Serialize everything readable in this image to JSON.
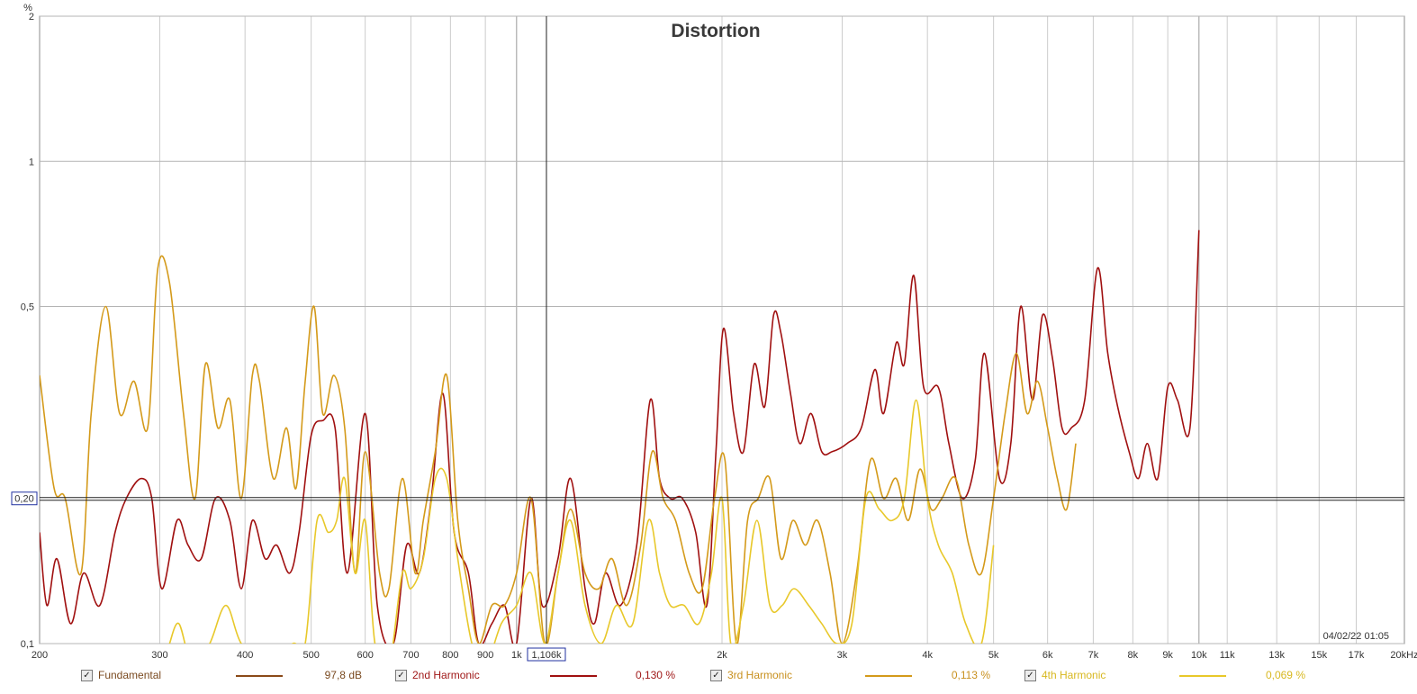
{
  "chart_data": {
    "type": "line",
    "title": "Distortion",
    "ylabel": "%",
    "xunit": "kHz",
    "x_scale": "log",
    "y_scale": "log",
    "xlim": [
      200,
      20000
    ],
    "ylim": [
      0.1,
      2
    ],
    "x_ticks": [
      {
        "v": 200,
        "t": "200"
      },
      {
        "v": 300,
        "t": "300"
      },
      {
        "v": 400,
        "t": "400"
      },
      {
        "v": 500,
        "t": "500"
      },
      {
        "v": 600,
        "t": "600"
      },
      {
        "v": 700,
        "t": "700"
      },
      {
        "v": 800,
        "t": "800"
      },
      {
        "v": 900,
        "t": "900"
      },
      {
        "v": 1000,
        "t": "1k"
      },
      {
        "v": 2000,
        "t": "2k"
      },
      {
        "v": 3000,
        "t": "3k"
      },
      {
        "v": 4000,
        "t": "4k"
      },
      {
        "v": 5000,
        "t": "5k"
      },
      {
        "v": 6000,
        "t": "6k"
      },
      {
        "v": 7000,
        "t": "7k"
      },
      {
        "v": 8000,
        "t": "8k"
      },
      {
        "v": 9000,
        "t": "9k"
      },
      {
        "v": 10000,
        "t": "10k"
      },
      {
        "v": 11000,
        "t": "11k"
      },
      {
        "v": 13000,
        "t": "13k"
      },
      {
        "v": 15000,
        "t": "15k"
      },
      {
        "v": 17000,
        "t": "17k"
      },
      {
        "v": 20000,
        "t": "20kHz"
      }
    ],
    "y_ticks": [
      {
        "v": 2,
        "t": "2"
      },
      {
        "v": 1,
        "t": "1"
      },
      {
        "v": 0.5,
        "t": "0,5"
      },
      {
        "v": 0.1,
        "t": "0,1"
      }
    ],
    "y_gridlines": [
      2,
      1,
      0.5,
      0.1
    ],
    "cursor_x": {
      "value": 1106,
      "label": "1,106k"
    },
    "cursor_y": {
      "value": 0.2,
      "label": "0,20"
    },
    "timestamp": "04/02/22 01:05",
    "grid": true,
    "series": [
      {
        "name": "2nd Harmonic",
        "color": "#a01010",
        "points": [
          [
            200,
            0.17
          ],
          [
            205,
            0.12
          ],
          [
            212,
            0.15
          ],
          [
            222,
            0.11
          ],
          [
            232,
            0.14
          ],
          [
            245,
            0.12
          ],
          [
            258,
            0.17
          ],
          [
            268,
            0.2
          ],
          [
            282,
            0.22
          ],
          [
            292,
            0.2
          ],
          [
            302,
            0.13
          ],
          [
            318,
            0.18
          ],
          [
            330,
            0.16
          ],
          [
            345,
            0.15
          ],
          [
            362,
            0.2
          ],
          [
            380,
            0.18
          ],
          [
            395,
            0.13
          ],
          [
            410,
            0.18
          ],
          [
            428,
            0.15
          ],
          [
            445,
            0.16
          ],
          [
            465,
            0.14
          ],
          [
            480,
            0.17
          ],
          [
            500,
            0.27
          ],
          [
            520,
            0.29
          ],
          [
            542,
            0.28
          ],
          [
            565,
            0.14
          ],
          [
            600,
            0.3
          ],
          [
            625,
            0.12
          ],
          [
            660,
            0.1
          ],
          [
            690,
            0.16
          ],
          [
            720,
            0.14
          ],
          [
            750,
            0.2
          ],
          [
            780,
            0.33
          ],
          [
            810,
            0.17
          ],
          [
            850,
            0.14
          ],
          [
            880,
            0.1
          ],
          [
            920,
            0.11
          ],
          [
            960,
            0.12
          ],
          [
            1000,
            0.1
          ],
          [
            1050,
            0.2
          ],
          [
            1090,
            0.12
          ],
          [
            1150,
            0.15
          ],
          [
            1200,
            0.22
          ],
          [
            1260,
            0.13
          ],
          [
            1300,
            0.11
          ],
          [
            1350,
            0.14
          ],
          [
            1420,
            0.12
          ],
          [
            1500,
            0.16
          ],
          [
            1570,
            0.32
          ],
          [
            1620,
            0.22
          ],
          [
            1680,
            0.2
          ],
          [
            1750,
            0.2
          ],
          [
            1830,
            0.17
          ],
          [
            1900,
            0.12
          ],
          [
            1960,
            0.25
          ],
          [
            2010,
            0.45
          ],
          [
            2080,
            0.3
          ],
          [
            2150,
            0.25
          ],
          [
            2230,
            0.38
          ],
          [
            2310,
            0.31
          ],
          [
            2380,
            0.48
          ],
          [
            2440,
            0.44
          ],
          [
            2520,
            0.33
          ],
          [
            2600,
            0.26
          ],
          [
            2700,
            0.3
          ],
          [
            2800,
            0.25
          ],
          [
            2900,
            0.25
          ],
          [
            3050,
            0.26
          ],
          [
            3200,
            0.28
          ],
          [
            3350,
            0.37
          ],
          [
            3450,
            0.3
          ],
          [
            3600,
            0.42
          ],
          [
            3700,
            0.38
          ],
          [
            3820,
            0.58
          ],
          [
            3950,
            0.34
          ],
          [
            4150,
            0.34
          ],
          [
            4300,
            0.26
          ],
          [
            4500,
            0.2
          ],
          [
            4700,
            0.24
          ],
          [
            4850,
            0.4
          ],
          [
            5100,
            0.22
          ],
          [
            5300,
            0.26
          ],
          [
            5480,
            0.5
          ],
          [
            5700,
            0.32
          ],
          [
            5900,
            0.48
          ],
          [
            6100,
            0.39
          ],
          [
            6300,
            0.28
          ],
          [
            6500,
            0.28
          ],
          [
            6800,
            0.32
          ],
          [
            7100,
            0.6
          ],
          [
            7350,
            0.4
          ],
          [
            7600,
            0.31
          ],
          [
            7900,
            0.25
          ],
          [
            8150,
            0.22
          ],
          [
            8400,
            0.26
          ],
          [
            8700,
            0.22
          ],
          [
            9000,
            0.34
          ],
          [
            9300,
            0.32
          ],
          [
            9700,
            0.28
          ],
          [
            10000,
            0.72
          ]
        ]
      },
      {
        "name": "3rd Harmonic",
        "color": "#d49a1a",
        "points": [
          [
            200,
            0.36
          ],
          [
            210,
            0.21
          ],
          [
            218,
            0.2
          ],
          [
            230,
            0.14
          ],
          [
            238,
            0.3
          ],
          [
            250,
            0.5
          ],
          [
            262,
            0.3
          ],
          [
            275,
            0.35
          ],
          [
            288,
            0.28
          ],
          [
            298,
            0.6
          ],
          [
            310,
            0.56
          ],
          [
            325,
            0.3
          ],
          [
            338,
            0.2
          ],
          [
            350,
            0.38
          ],
          [
            365,
            0.28
          ],
          [
            380,
            0.32
          ],
          [
            395,
            0.2
          ],
          [
            410,
            0.36
          ],
          [
            420,
            0.35
          ],
          [
            440,
            0.22
          ],
          [
            460,
            0.28
          ],
          [
            475,
            0.21
          ],
          [
            490,
            0.35
          ],
          [
            505,
            0.5
          ],
          [
            520,
            0.3
          ],
          [
            540,
            0.36
          ],
          [
            560,
            0.28
          ],
          [
            580,
            0.14
          ],
          [
            600,
            0.25
          ],
          [
            630,
            0.14
          ],
          [
            650,
            0.13
          ],
          [
            680,
            0.22
          ],
          [
            710,
            0.14
          ],
          [
            730,
            0.18
          ],
          [
            760,
            0.25
          ],
          [
            790,
            0.36
          ],
          [
            820,
            0.18
          ],
          [
            850,
            0.13
          ],
          [
            880,
            0.1
          ],
          [
            920,
            0.12
          ],
          [
            960,
            0.12
          ],
          [
            1000,
            0.14
          ],
          [
            1050,
            0.2
          ],
          [
            1100,
            0.1
          ],
          [
            1150,
            0.14
          ],
          [
            1200,
            0.19
          ],
          [
            1260,
            0.14
          ],
          [
            1320,
            0.13
          ],
          [
            1380,
            0.15
          ],
          [
            1450,
            0.12
          ],
          [
            1520,
            0.16
          ],
          [
            1580,
            0.25
          ],
          [
            1640,
            0.2
          ],
          [
            1710,
            0.18
          ],
          [
            1790,
            0.14
          ],
          [
            1870,
            0.13
          ],
          [
            1950,
            0.2
          ],
          [
            2020,
            0.24
          ],
          [
            2100,
            0.1
          ],
          [
            2180,
            0.18
          ],
          [
            2260,
            0.2
          ],
          [
            2350,
            0.22
          ],
          [
            2440,
            0.15
          ],
          [
            2540,
            0.18
          ],
          [
            2650,
            0.16
          ],
          [
            2760,
            0.18
          ],
          [
            2880,
            0.14
          ],
          [
            3000,
            0.1
          ],
          [
            3150,
            0.14
          ],
          [
            3300,
            0.24
          ],
          [
            3450,
            0.2
          ],
          [
            3600,
            0.22
          ],
          [
            3750,
            0.18
          ],
          [
            3900,
            0.23
          ],
          [
            4050,
            0.19
          ],
          [
            4200,
            0.2
          ],
          [
            4400,
            0.22
          ],
          [
            4600,
            0.16
          ],
          [
            4800,
            0.14
          ],
          [
            5000,
            0.2
          ],
          [
            5200,
            0.3
          ],
          [
            5400,
            0.4
          ],
          [
            5600,
            0.3
          ],
          [
            5800,
            0.35
          ],
          [
            6000,
            0.28
          ],
          [
            6200,
            0.22
          ],
          [
            6400,
            0.19
          ],
          [
            6600,
            0.26
          ]
        ]
      },
      {
        "name": "4th Harmonic",
        "color": "#e8c82a",
        "points": [
          [
            310,
            0.1
          ],
          [
            320,
            0.11
          ],
          [
            335,
            0.09
          ],
          [
            355,
            0.1
          ],
          [
            375,
            0.12
          ],
          [
            395,
            0.1
          ],
          [
            430,
            0.09
          ],
          [
            470,
            0.1
          ],
          [
            490,
            0.1
          ],
          [
            510,
            0.18
          ],
          [
            530,
            0.17
          ],
          [
            545,
            0.18
          ],
          [
            560,
            0.22
          ],
          [
            580,
            0.14
          ],
          [
            600,
            0.18
          ],
          [
            620,
            0.1
          ],
          [
            650,
            0.09
          ],
          [
            680,
            0.14
          ],
          [
            700,
            0.13
          ],
          [
            730,
            0.15
          ],
          [
            760,
            0.22
          ],
          [
            790,
            0.22
          ],
          [
            820,
            0.15
          ],
          [
            860,
            0.1
          ],
          [
            900,
            0.09
          ],
          [
            950,
            0.11
          ],
          [
            1000,
            0.12
          ],
          [
            1050,
            0.14
          ],
          [
            1100,
            0.1
          ],
          [
            1150,
            0.14
          ],
          [
            1200,
            0.18
          ],
          [
            1260,
            0.12
          ],
          [
            1330,
            0.1
          ],
          [
            1400,
            0.12
          ],
          [
            1480,
            0.11
          ],
          [
            1560,
            0.18
          ],
          [
            1620,
            0.14
          ],
          [
            1680,
            0.12
          ],
          [
            1760,
            0.12
          ],
          [
            1850,
            0.11
          ],
          [
            1930,
            0.14
          ],
          [
            2000,
            0.2
          ],
          [
            2060,
            0.1
          ],
          [
            2150,
            0.12
          ],
          [
            2250,
            0.18
          ],
          [
            2350,
            0.12
          ],
          [
            2450,
            0.12
          ],
          [
            2550,
            0.13
          ],
          [
            2680,
            0.12
          ],
          [
            2800,
            0.11
          ],
          [
            2950,
            0.1
          ],
          [
            3100,
            0.11
          ],
          [
            3250,
            0.2
          ],
          [
            3400,
            0.19
          ],
          [
            3550,
            0.18
          ],
          [
            3700,
            0.2
          ],
          [
            3850,
            0.32
          ],
          [
            4000,
            0.2
          ],
          [
            4150,
            0.16
          ],
          [
            4350,
            0.14
          ],
          [
            4550,
            0.11
          ],
          [
            4800,
            0.1
          ],
          [
            5000,
            0.16
          ]
        ]
      }
    ]
  },
  "legend": [
    {
      "label": "Fundamental",
      "value": "97,8 dB",
      "color": "#8a4a18",
      "text_color": "#7a4a20",
      "checked": "✓"
    },
    {
      "label": "2nd Harmonic",
      "value": "0,130 %",
      "color": "#a01010",
      "text_color": "#a01818",
      "checked": "✓"
    },
    {
      "label": "3rd Harmonic",
      "value": "0,113 %",
      "color": "#d49a1a",
      "text_color": "#c8901e",
      "checked": "✓"
    },
    {
      "label": "4th Harmonic",
      "value": "0,069 %",
      "color": "#e8c82a",
      "text_color": "#d8b820",
      "checked": "✓"
    }
  ]
}
